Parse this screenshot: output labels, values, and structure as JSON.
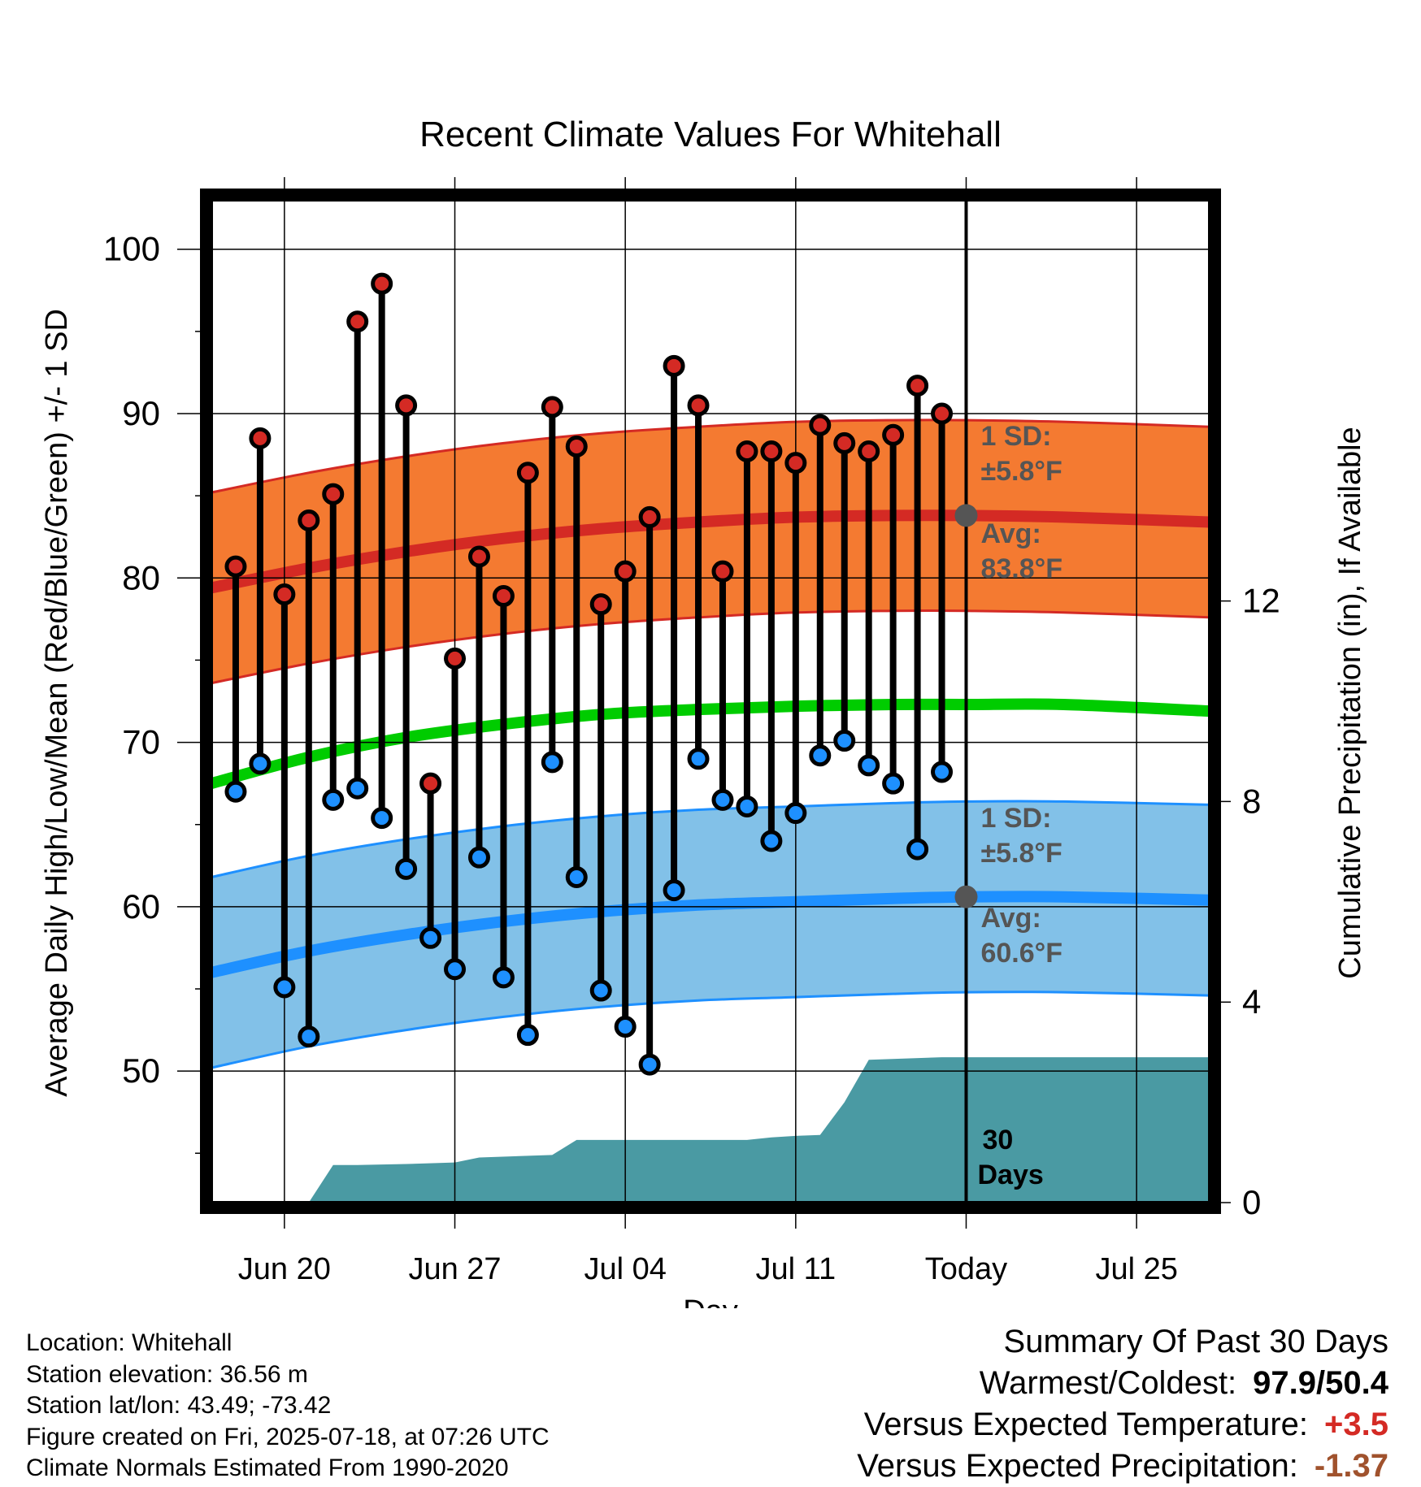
{
  "chart_data": {
    "type": "line",
    "title": "Recent Climate Values For Whitehall",
    "xlabel": "Day",
    "ylabel": "Average Daily High/Low/Mean (Red/Blue/Green) +/- 1 SD",
    "y2label": "Cumulative Precipitation (in), If Available",
    "x_ticks": [
      "Jun 20",
      "Jun 27",
      "Jul 04",
      "Jul 11",
      "Today",
      "Jul 25"
    ],
    "x_range": [
      "Jun 17",
      "Jul 28"
    ],
    "ylim": [
      42,
      103
    ],
    "y_ticks": [
      50,
      60,
      70,
      80,
      90,
      100
    ],
    "y2lim": [
      0,
      20
    ],
    "y2_ticks": [
      0,
      4,
      8,
      12
    ],
    "grid": true,
    "today_date": "Jul 18",
    "dates": [
      "Jun 18",
      "Jun 19",
      "Jun 20",
      "Jun 21",
      "Jun 22",
      "Jun 23",
      "Jun 24",
      "Jun 25",
      "Jun 26",
      "Jun 27",
      "Jun 28",
      "Jun 29",
      "Jun 30",
      "Jul 01",
      "Jul 02",
      "Jul 03",
      "Jul 04",
      "Jul 05",
      "Jul 06",
      "Jul 07",
      "Jul 08",
      "Jul 09",
      "Jul 10",
      "Jul 11",
      "Jul 12",
      "Jul 13",
      "Jul 14",
      "Jul 15",
      "Jul 16",
      "Jul 17"
    ],
    "daily_high": [
      80.7,
      88.5,
      79.0,
      83.5,
      85.1,
      95.6,
      97.9,
      90.5,
      67.5,
      75.1,
      81.3,
      78.9,
      86.4,
      90.4,
      88.0,
      78.4,
      80.4,
      83.7,
      92.9,
      90.5,
      80.4,
      87.7,
      87.7,
      87.0,
      89.3,
      88.2,
      87.7,
      88.7,
      91.7,
      90.0
    ],
    "daily_low": [
      67.0,
      68.7,
      55.1,
      52.1,
      66.5,
      67.2,
      65.4,
      62.3,
      58.1,
      56.2,
      63.0,
      55.7,
      52.2,
      68.8,
      61.8,
      54.9,
      52.7,
      50.4,
      61.0,
      69.0,
      66.5,
      66.1,
      64.0,
      65.7,
      69.2,
      70.1,
      68.6,
      67.5,
      63.5,
      68.2
    ],
    "normals": {
      "x": [
        "Jun 17",
        "Jun 21",
        "Jun 25",
        "Jun 29",
        "Jul 03",
        "Jul 07",
        "Jul 11",
        "Jul 15",
        "Jul 18",
        "Jul 22",
        "Jul 28"
      ],
      "avg_high": [
        79.4,
        80.6,
        81.6,
        82.4,
        83.0,
        83.4,
        83.7,
        83.8,
        83.8,
        83.7,
        83.4
      ],
      "high_sd": 5.8,
      "avg_mean": [
        67.5,
        69.1,
        70.3,
        71.1,
        71.7,
        72.0,
        72.2,
        72.3,
        72.3,
        72.3,
        71.9
      ],
      "avg_low": [
        56.0,
        57.3,
        58.3,
        59.1,
        59.7,
        60.1,
        60.3,
        60.5,
        60.6,
        60.6,
        60.4
      ],
      "low_sd": 5.8
    },
    "precip_cumulative": {
      "dates": [
        "Jun 21",
        "Jun 22",
        "Jun 23",
        "Jun 25",
        "Jun 27",
        "Jun 28",
        "Jul 01",
        "Jul 02",
        "Jul 08",
        "Jul 09",
        "Jul 10",
        "Jul 11",
        "Jul 12",
        "Jul 13",
        "Jul 14",
        "Jul 17",
        "Jul 18",
        "Jul 28"
      ],
      "values": [
        0.0,
        0.75,
        0.75,
        0.77,
        0.8,
        0.9,
        0.95,
        1.25,
        1.25,
        1.25,
        1.3,
        1.33,
        1.35,
        2.0,
        2.85,
        2.9,
        2.9,
        2.9
      ]
    },
    "annotations": {
      "high_sd_label": [
        "1 SD:",
        "±5.8°F"
      ],
      "high_avg_label": [
        "Avg:",
        "83.8°F"
      ],
      "low_sd_label": [
        "1 SD:",
        "±5.8°F"
      ],
      "low_avg_label": [
        "Avg:",
        "60.6°F"
      ],
      "precip_label": [
        "30",
        "Days"
      ]
    },
    "colors": {
      "high_band": "#f47a31",
      "high_line": "#d42a24",
      "mean_line": "#00cc00",
      "low_band": "#82c1e8",
      "low_line": "#1e90ff",
      "precip": "#4a9aa3",
      "high_marker": "#d42a24",
      "low_marker": "#1e90ff",
      "today_dot": "#555555",
      "annotation_text": "#555555"
    }
  },
  "footer": {
    "location": "Location: Whitehall",
    "elevation": "Station elevation: 36.56 m",
    "latlon": "Station lat/lon: 43.49; -73.42",
    "created": "Figure created on Fri, 2025-07-18, at 07:26 UTC",
    "normals": "Climate Normals Estimated From 1990-2020"
  },
  "summary": {
    "title": "Summary Of Past 30 Days",
    "warmest_coldest_label": "Warmest/Coldest:",
    "warmest_coldest_value": "97.9/50.4",
    "temp_label": "Versus Expected Temperature:",
    "temp_value": "+3.5",
    "temp_color": "#d42a24",
    "precip_label": "Versus Expected Precipitation:",
    "precip_value": "-1.37",
    "precip_color": "#a0522d"
  }
}
